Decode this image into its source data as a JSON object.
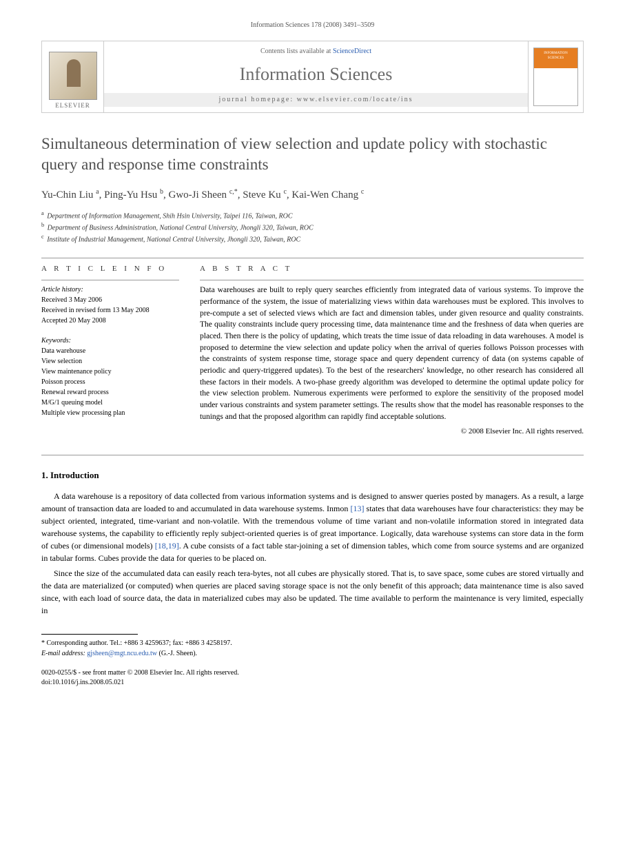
{
  "running_head": "Information Sciences 178 (2008) 3491–3509",
  "banner": {
    "contents_prefix": "Contents lists available at ",
    "contents_link": "ScienceDirect",
    "journal_title": "Information Sciences",
    "homepage_label": "journal homepage: www.elsevier.com/locate/ins",
    "publisher": "ELSEVIER",
    "cover_title": "INFORMATION SCIENCES"
  },
  "article": {
    "title": "Simultaneous determination of view selection and update policy with stochastic query and response time constraints",
    "authors_html": "Yu-Chin Liu <sup>a</sup>, Ping-Yu Hsu <sup>b</sup>, Gwo-Ji Sheen <sup>c,*</sup>, Steve Ku <sup>c</sup>, Kai-Wen Chang <sup>c</sup>",
    "affiliations": [
      {
        "marker": "a",
        "text": "Department of Information Management, Shih Hsin University, Taipei 116, Taiwan, ROC"
      },
      {
        "marker": "b",
        "text": "Department of Business Administration, National Central University, Jhongli 320, Taiwan, ROC"
      },
      {
        "marker": "c",
        "text": "Institute of Industrial Management, National Central University, Jhongli 320, Taiwan, ROC"
      }
    ]
  },
  "info": {
    "heading": "A R T I C L E   I N F O",
    "history_label": "Article history:",
    "history": [
      "Received 3 May 2006",
      "Received in revised form 13 May 2008",
      "Accepted 20 May 2008"
    ],
    "keywords_label": "Keywords:",
    "keywords": [
      "Data warehouse",
      "View selection",
      "View maintenance policy",
      "Poisson process",
      "Renewal reward process",
      "M/G/1 queuing model",
      "Multiple view processing plan"
    ]
  },
  "abstract": {
    "heading": "A B S T R A C T",
    "text": "Data warehouses are built to reply query searches efficiently from integrated data of various systems. To improve the performance of the system, the issue of materializing views within data warehouses must be explored. This involves to pre-compute a set of selected views which are fact and dimension tables, under given resource and quality constraints. The quality constraints include query processing time, data maintenance time and the freshness of data when queries are placed. Then there is the policy of updating, which treats the time issue of data reloading in data warehouses. A model is proposed to determine the view selection and update policy when the arrival of queries follows Poisson processes with the constraints of system response time, storage space and query dependent currency of data (on systems capable of periodic and query-triggered updates). To the best of the researchers' knowledge, no other research has considered all these factors in their models. A two-phase greedy algorithm was developed to determine the optimal update policy for the view selection problem. Numerous experiments were performed to explore the sensitivity of the proposed model under various constraints and system parameter settings. The results show that the model has reasonable responses to the tunings and that the proposed algorithm can rapidly find acceptable solutions.",
    "copyright": "© 2008 Elsevier Inc. All rights reserved."
  },
  "body": {
    "section_title": "1. Introduction",
    "para1_pre": "A data warehouse is a repository of data collected from various information systems and is designed to answer queries posted by managers. As a result, a large amount of transaction data are loaded to and accumulated in data warehouse systems. Inmon ",
    "ref13": "[13]",
    "para1_mid": " states that data warehouses have four characteristics: they may be subject oriented, integrated, time-variant and non-volatile. With the tremendous volume of time variant and non-volatile information stored in integrated data warehouse systems, the capability to efficiently reply subject-oriented queries is of great importance. Logically, data warehouse systems can store data in the form of cubes (or dimensional models) ",
    "ref1819": "[18,19]",
    "para1_post": ". A cube consists of a fact table star-joining a set of dimension tables, which come from source systems and are organized in tabular forms. Cubes provide the data for queries to be placed on.",
    "para2": "Since the size of the accumulated data can easily reach tera-bytes, not all cubes are physically stored. That is, to save space, some cubes are stored virtually and the data are materialized (or computed) when queries are placed saving storage space is not the only benefit of this approach; data maintenance time is also saved since, with each load of source data, the data in materialized cubes may also be updated. The time available to perform the maintenance is very limited, especially in"
  },
  "footnote": {
    "corr": "* Corresponding author. Tel.: +886 3 4259637; fax: +886 3 4258197.",
    "email_label": "E-mail address: ",
    "email": "gjsheen@mgt.ncu.edu.tw",
    "email_suffix": " (G.-J. Sheen)."
  },
  "doi": {
    "line1": "0020-0255/$ - see front matter © 2008 Elsevier Inc. All rights reserved.",
    "line2": "doi:10.1016/j.ins.2008.05.021"
  },
  "colors": {
    "link": "#2a5db0",
    "orange": "#e67e22",
    "title_gray": "#505050",
    "journal_gray": "#6a6a6a"
  }
}
